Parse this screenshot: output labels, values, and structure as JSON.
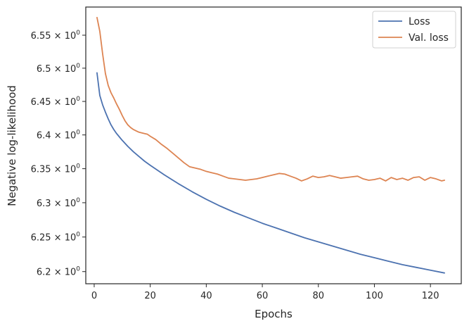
{
  "chart_data": {
    "type": "line",
    "xlabel": "Epochs",
    "ylabel": "Negative log-likelihood",
    "xlim": [
      -3,
      131
    ],
    "ylim": [
      6.1825,
      6.593
    ],
    "y_scale": "log",
    "grid": false,
    "legend_position": "top-right",
    "x_ticks": [
      {
        "value": 0,
        "label": "0"
      },
      {
        "value": 20,
        "label": "20"
      },
      {
        "value": 40,
        "label": "40"
      },
      {
        "value": 60,
        "label": "60"
      },
      {
        "value": 80,
        "label": "80"
      },
      {
        "value": 100,
        "label": "100"
      },
      {
        "value": 120,
        "label": "120"
      }
    ],
    "y_ticks": [
      {
        "value": 6.2,
        "mantissa": "6.2"
      },
      {
        "value": 6.25,
        "mantissa": "6.25"
      },
      {
        "value": 6.3,
        "mantissa": "6.3"
      },
      {
        "value": 6.35,
        "mantissa": "6.35"
      },
      {
        "value": 6.4,
        "mantissa": "6.4"
      },
      {
        "value": 6.45,
        "mantissa": "6.45"
      },
      {
        "value": 6.5,
        "mantissa": "6.5"
      },
      {
        "value": 6.55,
        "mantissa": "6.55"
      }
    ],
    "y_tick_multiplier": "× 10",
    "y_tick_exponent": "0",
    "series": [
      {
        "name": "Loss",
        "color": "#4c72b0",
        "x": [
          1,
          2,
          3,
          4,
          5,
          6,
          7,
          8,
          9,
          10,
          12,
          14,
          16,
          18,
          20,
          25,
          30,
          35,
          40,
          45,
          50,
          55,
          60,
          65,
          70,
          75,
          80,
          85,
          90,
          95,
          100,
          105,
          110,
          115,
          120,
          125
        ],
        "values": [
          6.493,
          6.459,
          6.445,
          6.434,
          6.424,
          6.415,
          6.408,
          6.402,
          6.397,
          6.392,
          6.383,
          6.375,
          6.368,
          6.361,
          6.355,
          6.341,
          6.328,
          6.316,
          6.305,
          6.295,
          6.286,
          6.278,
          6.27,
          6.263,
          6.256,
          6.249,
          6.243,
          6.237,
          6.231,
          6.225,
          6.22,
          6.215,
          6.21,
          6.206,
          6.202,
          6.198
        ]
      },
      {
        "name": "Val. loss",
        "color": "#dd8452",
        "x": [
          1,
          2,
          3,
          4,
          5,
          6,
          7,
          8,
          9,
          10,
          11,
          12,
          13,
          14,
          15,
          16,
          17,
          18,
          19,
          20,
          22,
          24,
          26,
          28,
          30,
          32,
          34,
          36,
          38,
          40,
          42,
          44,
          46,
          48,
          50,
          52,
          54,
          56,
          58,
          60,
          62,
          64,
          66,
          68,
          70,
          72,
          74,
          76,
          78,
          80,
          82,
          84,
          86,
          88,
          90,
          92,
          94,
          96,
          98,
          100,
          102,
          104,
          106,
          108,
          110,
          112,
          114,
          116,
          118,
          120,
          122,
          124,
          125
        ],
        "values": [
          6.577,
          6.556,
          6.522,
          6.492,
          6.474,
          6.463,
          6.455,
          6.446,
          6.438,
          6.429,
          6.421,
          6.415,
          6.411,
          6.408,
          6.406,
          6.404,
          6.403,
          6.402,
          6.401,
          6.398,
          6.393,
          6.386,
          6.38,
          6.373,
          6.366,
          6.359,
          6.353,
          6.351,
          6.349,
          6.346,
          6.344,
          6.342,
          6.339,
          6.336,
          6.335,
          6.334,
          6.333,
          6.334,
          6.335,
          6.337,
          6.339,
          6.341,
          6.343,
          6.342,
          6.339,
          6.336,
          6.332,
          6.335,
          6.339,
          6.337,
          6.338,
          6.34,
          6.338,
          6.336,
          6.337,
          6.338,
          6.339,
          6.335,
          6.333,
          6.334,
          6.336,
          6.332,
          6.337,
          6.334,
          6.336,
          6.333,
          6.337,
          6.338,
          6.333,
          6.337,
          6.335,
          6.332,
          6.333
        ]
      }
    ]
  }
}
